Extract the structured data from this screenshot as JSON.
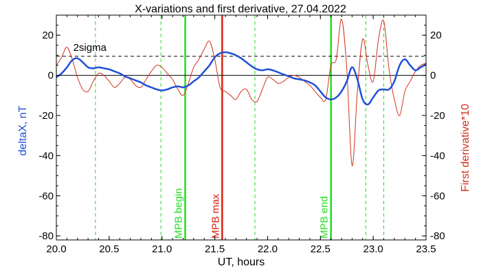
{
  "chart_data": {
    "type": "line",
    "title": "X-variations and first derivative, 27.04.2022",
    "xlabel": "UT, hours",
    "ylabel_left": "deltaX, nT",
    "ylabel_right": "First derivative*10",
    "xlim": [
      20.0,
      23.5
    ],
    "ylim": [
      -82,
      30
    ],
    "x_ticks": [
      20.0,
      20.5,
      21.0,
      21.5,
      22.0,
      22.5,
      23.0,
      23.5
    ],
    "y_ticks": [
      -80,
      -60,
      -40,
      -20,
      0,
      20
    ],
    "x_tick_labels": [
      "20.0",
      "20.5",
      "21.0",
      "21.5",
      "22.0",
      "22.5",
      "23.0",
      "23.5"
    ],
    "y_tick_labels": [
      "-80",
      "-60",
      "-40",
      "-20",
      "0",
      "20"
    ],
    "grid": false,
    "colors": {
      "deltaX": "#1f4fd8",
      "derivative": "#d0301c",
      "mpb": "#22dd22",
      "max": "#e02010",
      "reference": "#000000"
    },
    "reference_lines": [
      {
        "label": "2sigma",
        "y": 9.5,
        "style": "dashed"
      },
      {
        "label": "",
        "y": 0,
        "style": "solid"
      }
    ],
    "vertical_markers": [
      {
        "label": "MPB begin",
        "x": 21.22,
        "style": "solid",
        "color": "#22dd22"
      },
      {
        "label": "MPB max",
        "x": 21.57,
        "style": "solid",
        "color": "#e02010"
      },
      {
        "label": "MPB end",
        "x": 22.6,
        "style": "solid",
        "color": "#22dd22"
      },
      {
        "label": "",
        "x": 20.37,
        "style": "dashed",
        "color": "#22dd22"
      },
      {
        "label": "",
        "x": 20.99,
        "style": "dashed",
        "color": "#22dd22"
      },
      {
        "label": "",
        "x": 21.88,
        "style": "dashed",
        "color": "#22dd22"
      },
      {
        "label": "",
        "x": 22.93,
        "style": "dashed",
        "color": "#22dd22"
      },
      {
        "label": "",
        "x": 23.1,
        "style": "dashed",
        "color": "#22dd22"
      }
    ],
    "series": [
      {
        "id": "deltaX",
        "x": [
          20.0,
          20.05,
          20.1,
          20.15,
          20.2,
          20.25,
          20.3,
          20.35,
          20.4,
          20.45,
          20.5,
          20.55,
          20.6,
          20.65,
          20.7,
          20.75,
          20.8,
          20.85,
          20.9,
          20.95,
          21.0,
          21.05,
          21.1,
          21.15,
          21.2,
          21.25,
          21.3,
          21.35,
          21.4,
          21.45,
          21.5,
          21.55,
          21.6,
          21.65,
          21.7,
          21.75,
          21.8,
          21.85,
          21.9,
          21.95,
          22.0,
          22.05,
          22.1,
          22.15,
          22.2,
          22.25,
          22.3,
          22.35,
          22.4,
          22.45,
          22.5,
          22.55,
          22.6,
          22.65,
          22.7,
          22.75,
          22.8,
          22.85,
          22.9,
          22.95,
          23.0,
          23.05,
          23.1,
          23.15,
          23.2,
          23.25,
          23.3,
          23.35,
          23.4,
          23.45,
          23.5
        ],
        "values": [
          -1,
          1,
          4,
          7.5,
          8.5,
          6.5,
          4,
          3.5,
          4,
          3.5,
          3,
          2,
          1,
          -0.5,
          -1.5,
          -2.5,
          -3.5,
          -5,
          -6,
          -7,
          -7.5,
          -7,
          -6,
          -5.5,
          -6,
          -5,
          -3,
          -1,
          2,
          5,
          9,
          11,
          11.5,
          11,
          10,
          8.5,
          6.5,
          4.5,
          3,
          2.5,
          3,
          2.5,
          1.5,
          0.5,
          -0.5,
          -1.5,
          -2,
          -2.5,
          -3.5,
          -5,
          -8,
          -11,
          -12,
          -11,
          -8,
          -3,
          4,
          -2,
          -12,
          -14.5,
          -11,
          -7.5,
          -7,
          -7,
          -3,
          5,
          8,
          5,
          2.5,
          4,
          5.5
        ]
      },
      {
        "id": "derivative",
        "x": [
          20.0,
          20.05,
          20.1,
          20.15,
          20.2,
          20.25,
          20.3,
          20.35,
          20.4,
          20.45,
          20.5,
          20.55,
          20.6,
          20.65,
          20.7,
          20.75,
          20.8,
          20.85,
          20.9,
          20.95,
          21.0,
          21.05,
          21.1,
          21.15,
          21.2,
          21.25,
          21.3,
          21.35,
          21.4,
          21.45,
          21.5,
          21.55,
          21.6,
          21.65,
          21.7,
          21.75,
          21.8,
          21.85,
          21.9,
          21.95,
          22.0,
          22.05,
          22.1,
          22.15,
          22.2,
          22.25,
          22.3,
          22.35,
          22.4,
          22.45,
          22.5,
          22.55,
          22.6,
          22.65,
          22.7,
          22.75,
          22.8,
          22.85,
          22.9,
          22.95,
          23.0,
          23.05,
          23.1,
          23.15,
          23.2,
          23.25,
          23.3,
          23.35,
          23.4,
          23.45,
          23.5
        ],
        "values": [
          5,
          9,
          14,
          8,
          -1,
          -7,
          -8,
          -3,
          1,
          0,
          -3,
          -6,
          -4,
          -1,
          -2,
          -5,
          -6,
          -2,
          2,
          5,
          4,
          1,
          -2,
          -7,
          -10,
          -4,
          4,
          8,
          13,
          17,
          8,
          -6,
          -8,
          -10,
          -12,
          -8,
          -7,
          -12,
          -13,
          -7,
          -1,
          -2,
          -4,
          -3,
          -1,
          0,
          -1,
          -3,
          -5,
          -8,
          -11,
          -12,
          5,
          8,
          28,
          3,
          -45,
          -8,
          18,
          5,
          -3,
          18,
          27,
          3,
          -12,
          -20,
          -8,
          -3,
          2,
          5,
          6
        ]
      }
    ]
  }
}
